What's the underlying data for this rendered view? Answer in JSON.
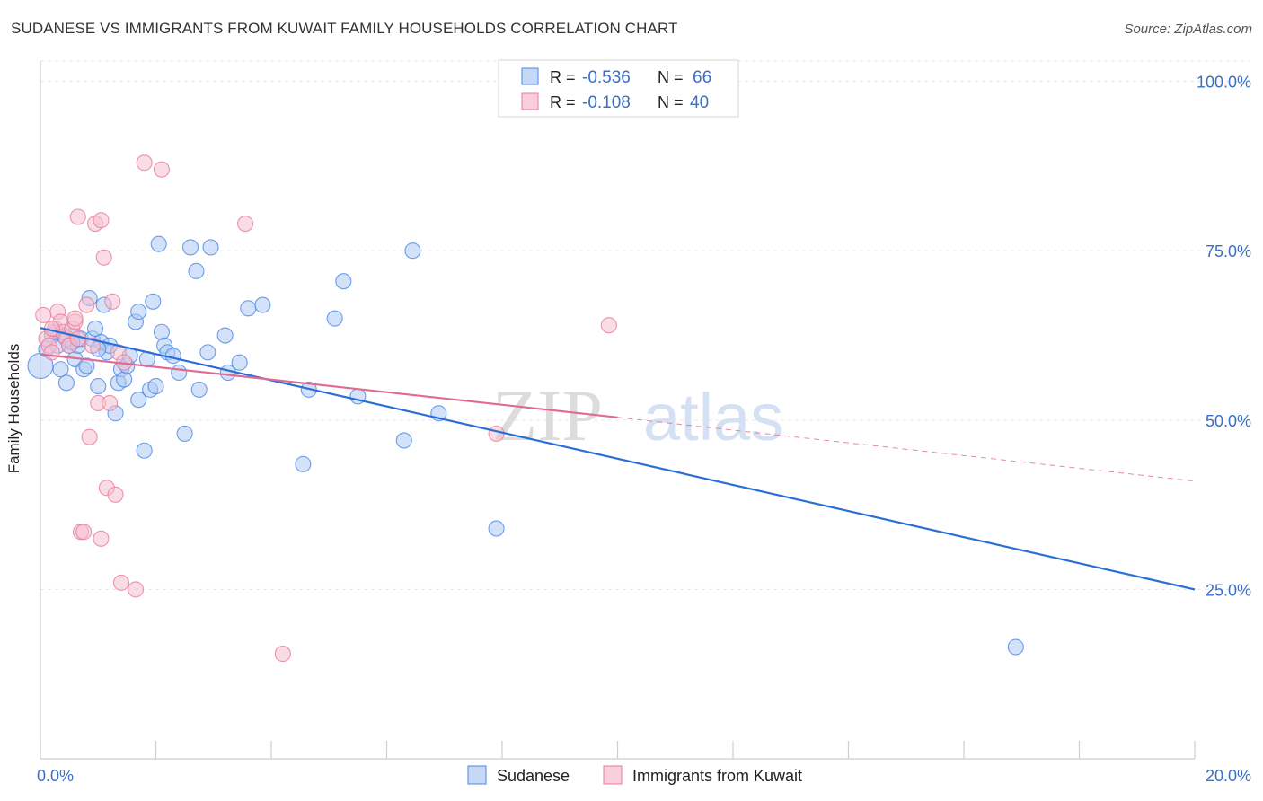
{
  "header": {
    "title": "SUDANESE VS IMMIGRANTS FROM KUWAIT FAMILY HOUSEHOLDS CORRELATION CHART",
    "source": "Source: ZipAtlas.com"
  },
  "colors": {
    "blue": "#4a86e8",
    "blue_fill": "#aecbf3",
    "blue_line": "#2a6fd6",
    "pink": "#e8799a",
    "pink_fill": "#f6bfd0",
    "pink_line": "#e06a92",
    "tick_label": "#3a6fc4",
    "grid": "#e6e6e6"
  },
  "legend_top": {
    "rows": [
      {
        "r_label": "R =",
        "r_value": "-0.536",
        "n_label": "N =",
        "n_value": "66",
        "color": "#4a86e8"
      },
      {
        "r_label": "R =",
        "r_value": "-0.108",
        "n_label": "N =",
        "n_value": "40",
        "color": "#e8799a"
      }
    ]
  },
  "watermark": {
    "zip": "ZIP",
    "atlas": "atlas"
  },
  "chart_data": {
    "type": "scatter",
    "title": "SUDANESE VS IMMIGRANTS FROM KUWAIT FAMILY HOUSEHOLDS CORRELATION CHART",
    "xlabel": "",
    "ylabel": "Family Households",
    "xlim": [
      0,
      20
    ],
    "ylim": [
      0,
      103
    ],
    "x_tick_labels": [
      "0.0%",
      "20.0%"
    ],
    "y_ticks": [
      25,
      50,
      75,
      100
    ],
    "y_tick_labels": [
      "25.0%",
      "50.0%",
      "75.0%",
      "100.0%"
    ],
    "grid": true,
    "legend_position": "bottom",
    "series": [
      {
        "name": "Sudanese",
        "color": "#4a86e8",
        "trend": {
          "x": [
            0,
            20
          ],
          "y": [
            63.6,
            25.0
          ]
        },
        "points": [
          [
            0.0,
            58.0
          ],
          [
            0.1,
            60.5
          ],
          [
            0.2,
            62.5
          ],
          [
            0.35,
            57.5
          ],
          [
            0.45,
            55.5
          ],
          [
            0.5,
            61.0
          ],
          [
            0.55,
            62.5
          ],
          [
            0.6,
            59.0
          ],
          [
            0.65,
            61.0
          ],
          [
            0.7,
            62.0
          ],
          [
            0.75,
            57.5
          ],
          [
            0.8,
            58.0
          ],
          [
            0.85,
            68.0
          ],
          [
            0.9,
            62.0
          ],
          [
            0.95,
            63.5
          ],
          [
            1.0,
            55.0
          ],
          [
            1.05,
            61.5
          ],
          [
            1.1,
            67.0
          ],
          [
            1.15,
            60.0
          ],
          [
            1.2,
            61.0
          ],
          [
            1.3,
            51.0
          ],
          [
            1.35,
            55.5
          ],
          [
            1.4,
            57.5
          ],
          [
            1.45,
            56.0
          ],
          [
            1.5,
            58.0
          ],
          [
            1.55,
            59.5
          ],
          [
            1.65,
            64.5
          ],
          [
            1.7,
            66.0
          ],
          [
            1.7,
            53.0
          ],
          [
            1.8,
            45.5
          ],
          [
            1.85,
            59.0
          ],
          [
            1.9,
            54.5
          ],
          [
            1.95,
            67.5
          ],
          [
            2.0,
            55.0
          ],
          [
            2.05,
            76.0
          ],
          [
            2.1,
            63.0
          ],
          [
            2.15,
            61.0
          ],
          [
            2.2,
            60.0
          ],
          [
            2.3,
            59.5
          ],
          [
            2.4,
            57.0
          ],
          [
            2.5,
            48.0
          ],
          [
            2.6,
            75.5
          ],
          [
            2.7,
            72.0
          ],
          [
            2.75,
            54.5
          ],
          [
            2.9,
            60.0
          ],
          [
            2.95,
            75.5
          ],
          [
            3.2,
            62.5
          ],
          [
            3.25,
            57.0
          ],
          [
            3.45,
            58.5
          ],
          [
            3.6,
            66.5
          ],
          [
            3.85,
            67.0
          ],
          [
            4.55,
            43.5
          ],
          [
            4.65,
            54.5
          ],
          [
            5.1,
            65.0
          ],
          [
            5.25,
            70.5
          ],
          [
            5.5,
            53.5
          ],
          [
            6.3,
            47.0
          ],
          [
            6.45,
            75.0
          ],
          [
            6.9,
            51.0
          ],
          [
            7.9,
            34.0
          ],
          [
            16.9,
            16.5
          ],
          [
            0.3,
            61.0
          ],
          [
            0.4,
            62.5
          ],
          [
            1.0,
            60.5
          ],
          [
            0.25,
            63.0
          ],
          [
            0.55,
            61.5
          ]
        ]
      },
      {
        "name": "Immigrants from Kuwait",
        "color": "#e8799a",
        "trend": {
          "x": [
            0,
            10
          ],
          "y": [
            59.7,
            50.4
          ]
        },
        "trend_extension": {
          "x": [
            10,
            20
          ],
          "y": [
            50.4,
            41.0
          ]
        },
        "points": [
          [
            0.05,
            65.5
          ],
          [
            0.1,
            62.0
          ],
          [
            0.15,
            61.0
          ],
          [
            0.2,
            60.0
          ],
          [
            0.25,
            63.5
          ],
          [
            0.3,
            66.0
          ],
          [
            0.35,
            64.5
          ],
          [
            0.4,
            63.0
          ],
          [
            0.45,
            62.0
          ],
          [
            0.5,
            61.0
          ],
          [
            0.55,
            63.5
          ],
          [
            0.6,
            64.5
          ],
          [
            0.65,
            62.0
          ],
          [
            0.6,
            65.0
          ],
          [
            0.65,
            80.0
          ],
          [
            0.7,
            33.5
          ],
          [
            0.75,
            33.5
          ],
          [
            0.8,
            67.0
          ],
          [
            0.85,
            47.5
          ],
          [
            0.9,
            61.0
          ],
          [
            0.95,
            79.0
          ],
          [
            1.0,
            52.5
          ],
          [
            1.05,
            79.5
          ],
          [
            1.1,
            74.0
          ],
          [
            1.15,
            40.0
          ],
          [
            1.2,
            52.5
          ],
          [
            1.25,
            67.5
          ],
          [
            1.3,
            39.0
          ],
          [
            1.35,
            60.0
          ],
          [
            1.4,
            26.0
          ],
          [
            1.45,
            58.5
          ],
          [
            1.05,
            32.5
          ],
          [
            1.65,
            25.0
          ],
          [
            1.8,
            88.0
          ],
          [
            2.1,
            87.0
          ],
          [
            3.55,
            79.0
          ],
          [
            4.2,
            15.5
          ],
          [
            7.9,
            48.0
          ],
          [
            9.85,
            64.0
          ],
          [
            0.2,
            63.5
          ]
        ]
      }
    ]
  }
}
